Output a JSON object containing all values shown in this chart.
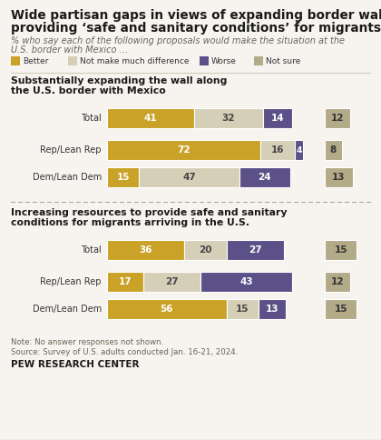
{
  "title_line1": "Wide partisan gaps in views of expanding border wall,",
  "title_line2": "providing ‘safe and sanitary conditions’ for migrants",
  "subtitle": "% who say each of the following proposals would make the situation at the\nU.S. border with Mexico …",
  "legend_labels": [
    "Better",
    "Not make much difference",
    "Worse",
    "Not sure"
  ],
  "colors": {
    "Better": "#c9a227",
    "Not make much difference": "#d6cfb8",
    "Worse": "#5b5188",
    "Not sure": "#b3aa88"
  },
  "section1_title_line1": "Substantially expanding the wall along",
  "section1_title_line2": "the U.S. border with Mexico",
  "section1_rows": [
    {
      "label": "Total",
      "Better": 41,
      "Not make much difference": 32,
      "Worse": 14,
      "Not sure": 12
    },
    {
      "label": "Rep/Lean Rep",
      "Better": 72,
      "Not make much difference": 16,
      "Worse": 4,
      "Not sure": 8
    },
    {
      "label": "Dem/Lean Dem",
      "Better": 15,
      "Not make much difference": 47,
      "Worse": 24,
      "Not sure": 13
    }
  ],
  "section2_title_line1": "Increasing resources to provide safe and sanitary",
  "section2_title_line2": "conditions for migrants arriving in the U.S.",
  "section2_rows": [
    {
      "label": "Total",
      "Better": 36,
      "Not make much difference": 20,
      "Worse": 27,
      "Not sure": 15
    },
    {
      "label": "Rep/Lean Rep",
      "Better": 17,
      "Not make much difference": 27,
      "Worse": 43,
      "Not sure": 12
    },
    {
      "label": "Dem/Lean Dem",
      "Better": 56,
      "Not make much difference": 15,
      "Worse": 13,
      "Not sure": 15
    }
  ],
  "note": "Note: No answer responses not shown.",
  "source": "Source: Survey of U.S. adults conducted Jan. 16-21, 2024.",
  "footer": "PEW RESEARCH CENTER",
  "bg_color": "#f7f4ef"
}
